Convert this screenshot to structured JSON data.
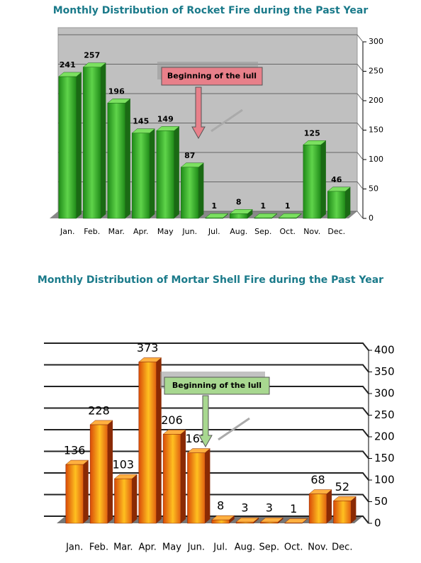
{
  "chart_data": [
    {
      "type": "bar",
      "title": "Monthly Distribution of Rocket Fire during the Past Year",
      "categories": [
        "Jan.",
        "Feb.",
        "Mar.",
        "Apr.",
        "May",
        "Jun.",
        "Jul.",
        "Aug.",
        "Sep.",
        "Oct.",
        "Nov.",
        "Dec."
      ],
      "values": [
        241,
        257,
        196,
        145,
        149,
        87,
        1,
        8,
        1,
        1,
        125,
        46
      ],
      "color": "#3ab52a",
      "ylim": [
        0,
        300
      ],
      "yticks": [
        0,
        50,
        100,
        150,
        200,
        250,
        300
      ],
      "grid": true,
      "annotation": "Beginning of the lull",
      "annotation_color": "#e8808a"
    },
    {
      "type": "bar",
      "title": "Monthly Distribution of Mortar Shell Fire during the Past Year",
      "categories": [
        "Jan.",
        "Feb.",
        "Mar.",
        "Apr.",
        "May",
        "Jun.",
        "Jul.",
        "Aug.",
        "Sep.",
        "Oct.",
        "Nov.",
        "Dec."
      ],
      "values": [
        136,
        228,
        103,
        373,
        206,
        163,
        8,
        3,
        3,
        1,
        68,
        52
      ],
      "color": "#f07b10",
      "ylim": [
        0,
        400
      ],
      "yticks": [
        0,
        50,
        100,
        150,
        200,
        250,
        300,
        350,
        400
      ],
      "grid": true,
      "annotation": "Beginning of the lull",
      "annotation_color": "#a8d890"
    }
  ]
}
